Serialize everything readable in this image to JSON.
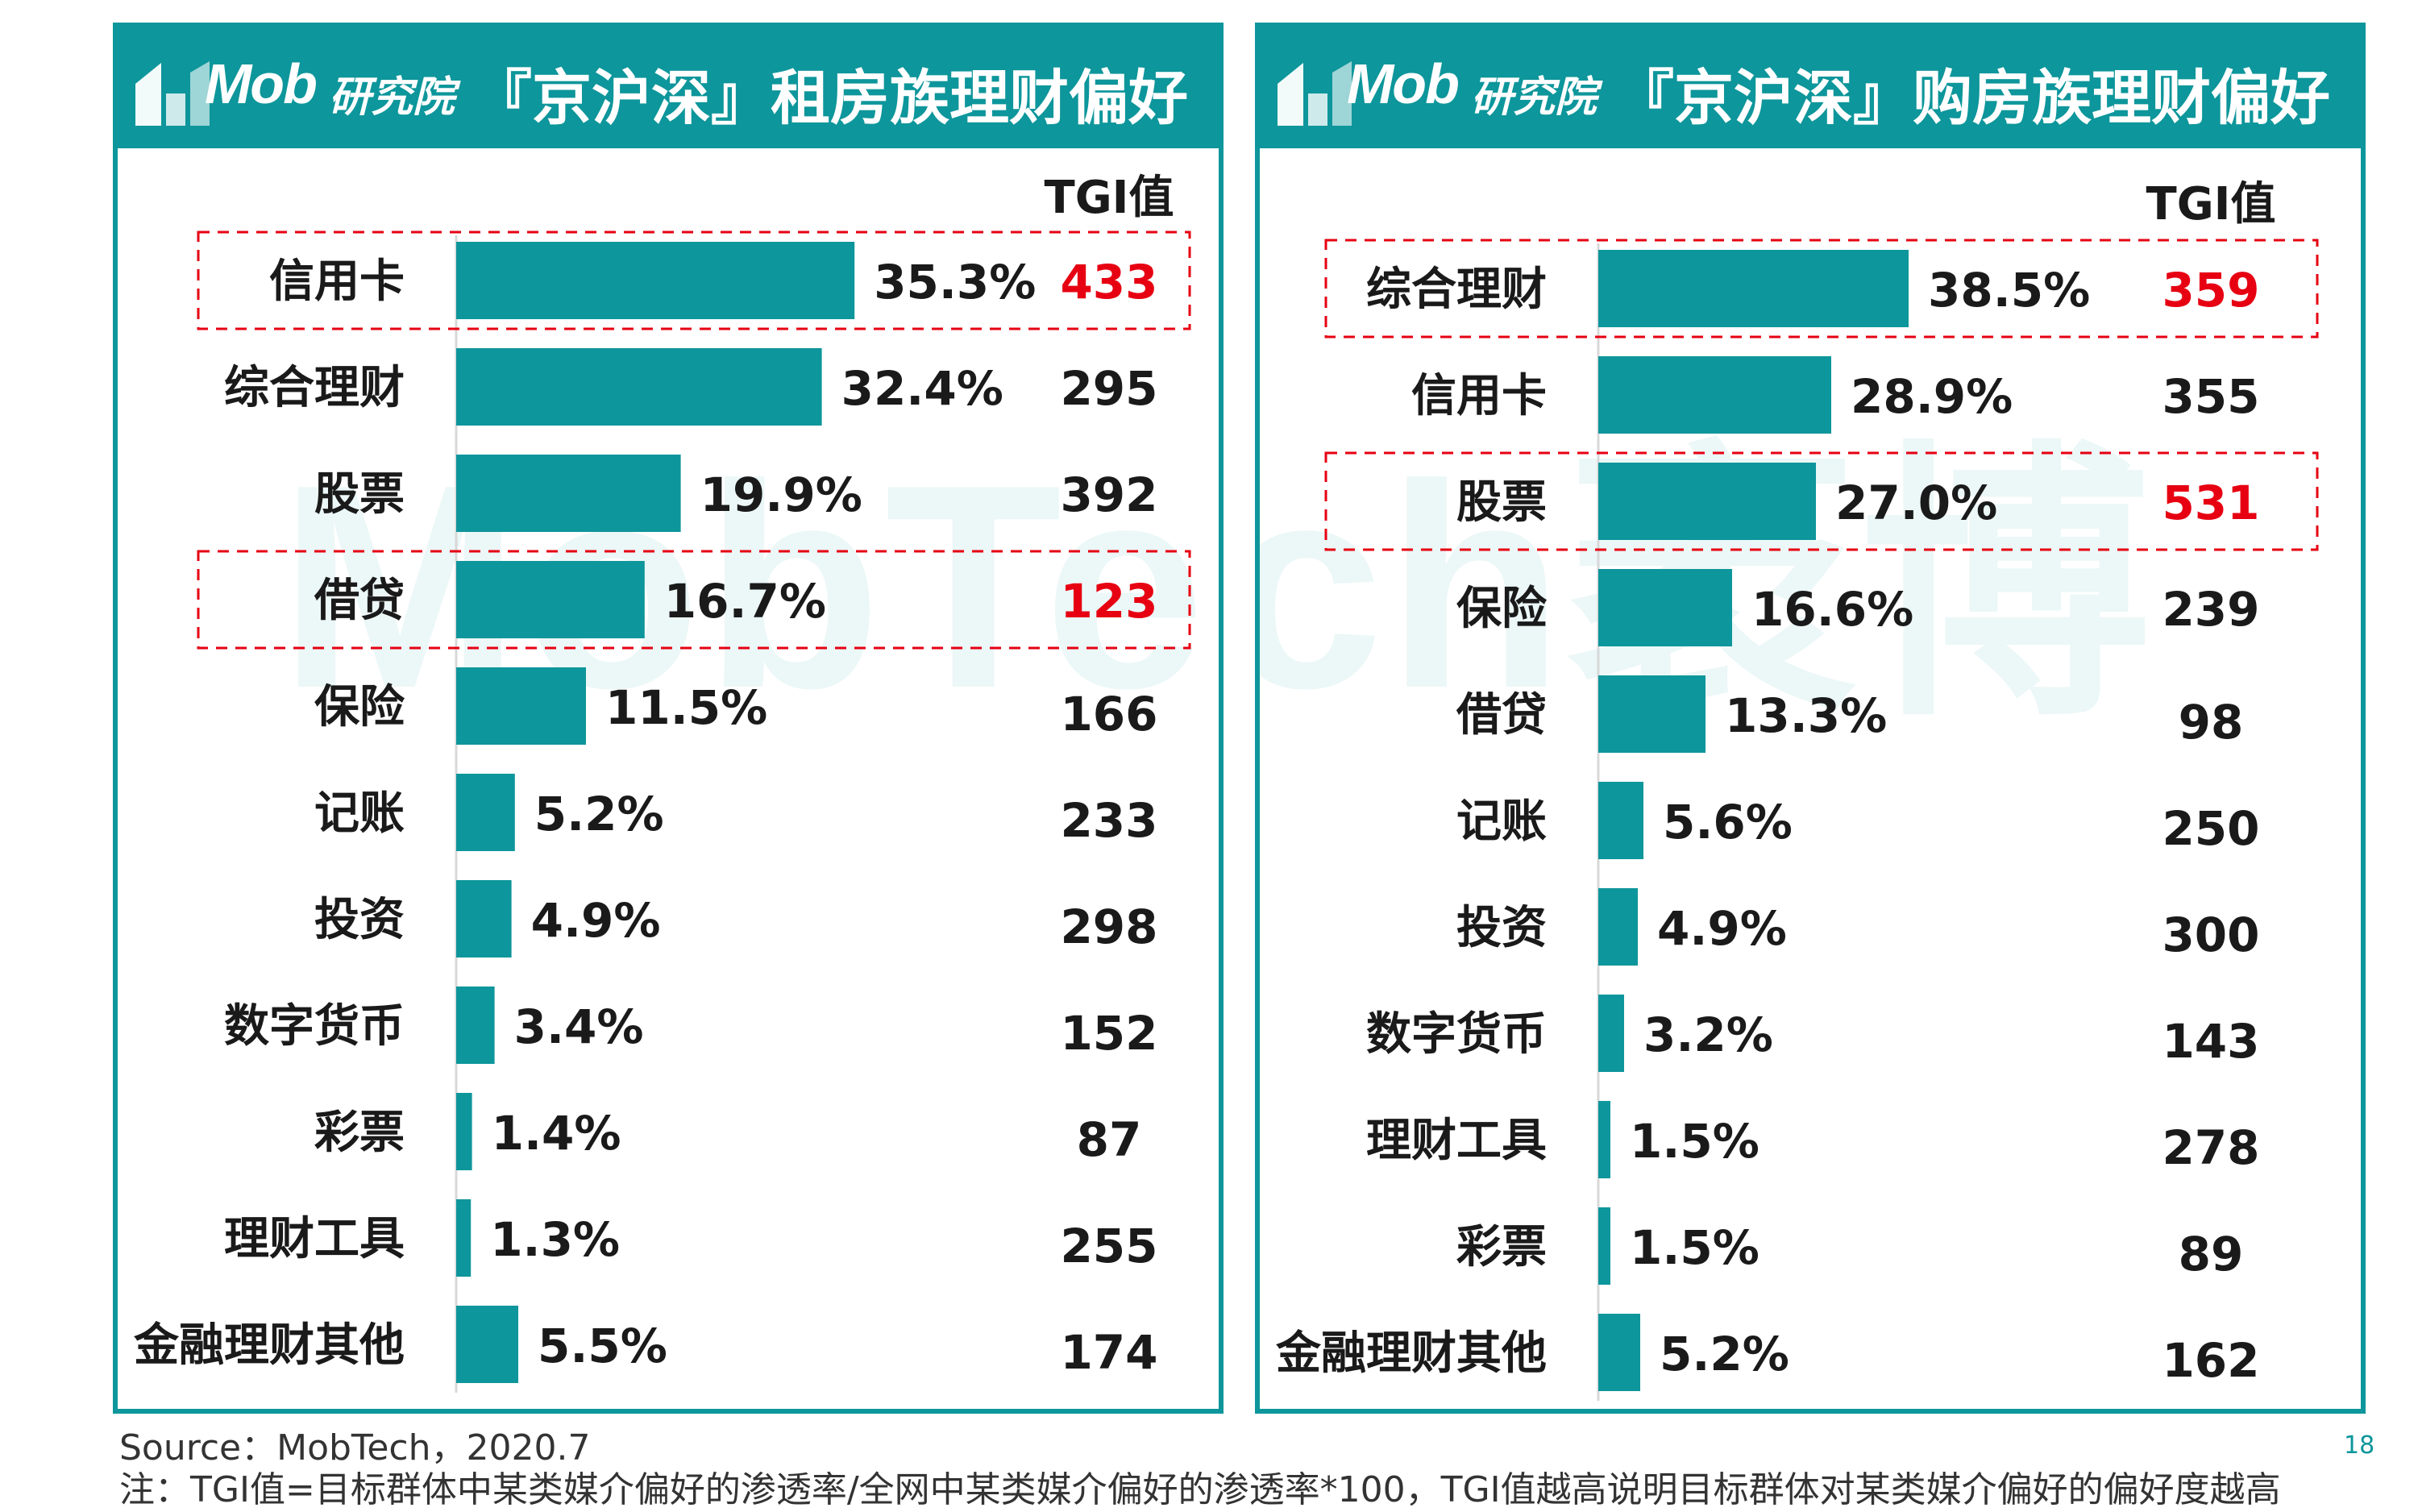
{
  "brand": {
    "name": "Mob",
    "cn": "研究院"
  },
  "tgi_header": "TGI值",
  "source": "Source：MobTech，2020.7",
  "note": "注：TGI值=目标群体中某类媒介偏好的渗透率/全网中某类媒介偏好的渗透率*100，TGI值越高说明目标群体对某类媒介偏好的偏好度越高",
  "page_number": "18",
  "watermark": "MobTech袤博",
  "colors": {
    "teal": "#0d969b",
    "highlight_red": "#e60012"
  },
  "chart_data": [
    {
      "type": "bar",
      "orientation": "horizontal",
      "title": "『京沪深』租房族理财偏好",
      "categories": [
        "信用卡",
        "综合理财",
        "股票",
        "借贷",
        "保险",
        "记账",
        "投资",
        "数字货币",
        "彩票",
        "理财工具",
        "金融理财其他"
      ],
      "values": [
        35.3,
        32.4,
        19.9,
        16.7,
        11.5,
        5.2,
        4.9,
        3.4,
        1.4,
        1.3,
        5.5
      ],
      "value_labels": [
        "35.3%",
        "32.4%",
        "19.9%",
        "16.7%",
        "11.5%",
        "5.2%",
        "4.9%",
        "3.4%",
        "1.4%",
        "1.3%",
        "5.5%"
      ],
      "tgi": [
        "433",
        "295",
        "392",
        "123",
        "166",
        "233",
        "298",
        "152",
        "87",
        "255",
        "174"
      ],
      "highlighted": [
        "信用卡",
        "借贷"
      ]
    },
    {
      "type": "bar",
      "orientation": "horizontal",
      "title": "『京沪深』购房族理财偏好",
      "categories": [
        "综合理财",
        "信用卡",
        "股票",
        "保险",
        "借贷",
        "记账",
        "投资",
        "数字货币",
        "理财工具",
        "彩票",
        "金融理财其他"
      ],
      "values": [
        38.5,
        28.9,
        27.0,
        16.6,
        13.3,
        5.6,
        4.9,
        3.2,
        1.5,
        1.5,
        5.2
      ],
      "value_labels": [
        "38.5%",
        "28.9%",
        "27.0%",
        "16.6%",
        "13.3%",
        "5.6%",
        "4.9%",
        "3.2%",
        "1.5%",
        "1.5%",
        "5.2%"
      ],
      "tgi": [
        "359",
        "355",
        "531",
        "239",
        "98",
        "250",
        "300",
        "143",
        "278",
        "89",
        "162"
      ],
      "highlighted": [
        "综合理财",
        "股票"
      ]
    }
  ]
}
